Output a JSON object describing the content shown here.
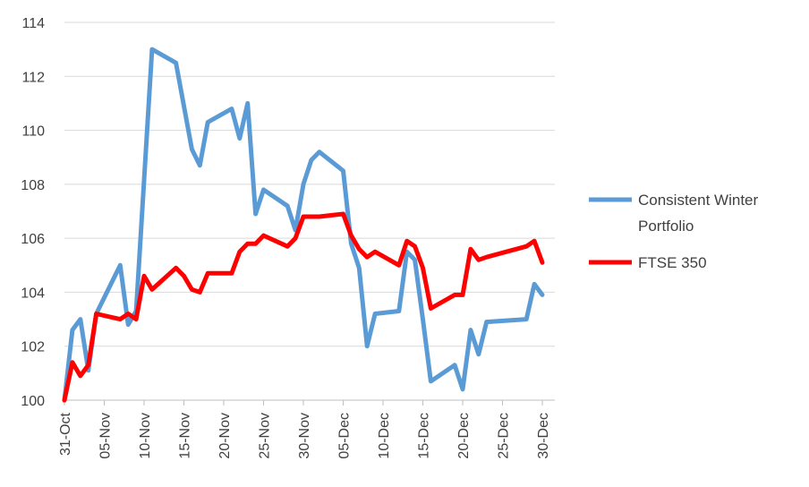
{
  "chart_data": {
    "type": "line",
    "title": "",
    "xlabel": "",
    "ylabel": "",
    "ylim": [
      100,
      114
    ],
    "yticks": [
      100,
      102,
      104,
      106,
      108,
      110,
      112,
      114
    ],
    "xlim": [
      "2019-10-31",
      "2019-12-31"
    ],
    "xtick_labels": [
      "31-Oct",
      "05-Nov",
      "10-Nov",
      "15-Nov",
      "20-Nov",
      "25-Nov",
      "30-Nov",
      "05-Dec",
      "10-Dec",
      "15-Dec",
      "20-Dec",
      "25-Dec",
      "30-Dec"
    ],
    "xtick_dates": [
      "2019-10-31",
      "2019-11-05",
      "2019-11-10",
      "2019-11-15",
      "2019-11-20",
      "2019-11-25",
      "2019-11-30",
      "2019-12-05",
      "2019-12-10",
      "2019-12-15",
      "2019-12-20",
      "2019-12-25",
      "2019-12-30"
    ],
    "grid": true,
    "legend_position": "right",
    "series": [
      {
        "name": "Consistent Winter Portfolio",
        "color": "#5b9bd5",
        "points": [
          [
            "2019-10-31",
            100.0
          ],
          [
            "2019-11-01",
            102.6
          ],
          [
            "2019-11-02",
            103.0
          ],
          [
            "2019-11-03",
            101.1
          ],
          [
            "2019-11-04",
            103.2
          ],
          [
            "2019-11-07",
            105.0
          ],
          [
            "2019-11-08",
            102.8
          ],
          [
            "2019-11-09",
            103.3
          ],
          [
            "2019-11-11",
            113.0
          ],
          [
            "2019-11-14",
            112.5
          ],
          [
            "2019-11-15",
            110.9
          ],
          [
            "2019-11-16",
            109.3
          ],
          [
            "2019-11-17",
            108.7
          ],
          [
            "2019-11-18",
            110.3
          ],
          [
            "2019-11-21",
            110.8
          ],
          [
            "2019-11-22",
            109.7
          ],
          [
            "2019-11-23",
            111.0
          ],
          [
            "2019-11-24",
            106.9
          ],
          [
            "2019-11-25",
            107.8
          ],
          [
            "2019-11-28",
            107.2
          ],
          [
            "2019-11-29",
            106.3
          ],
          [
            "2019-11-30",
            108.0
          ],
          [
            "2019-12-01",
            108.9
          ],
          [
            "2019-12-02",
            109.2
          ],
          [
            "2019-12-05",
            108.5
          ],
          [
            "2019-12-06",
            105.8
          ],
          [
            "2019-12-07",
            104.9
          ],
          [
            "2019-12-08",
            102.0
          ],
          [
            "2019-12-09",
            103.2
          ],
          [
            "2019-12-12",
            103.3
          ],
          [
            "2019-12-13",
            105.5
          ],
          [
            "2019-12-14",
            105.2
          ],
          [
            "2019-12-15",
            103.0
          ],
          [
            "2019-12-16",
            100.7
          ],
          [
            "2019-12-19",
            101.3
          ],
          [
            "2019-12-20",
            100.4
          ],
          [
            "2019-12-21",
            102.6
          ],
          [
            "2019-12-22",
            101.7
          ],
          [
            "2019-12-23",
            102.9
          ],
          [
            "2019-12-28",
            103.0
          ],
          [
            "2019-12-29",
            104.3
          ],
          [
            "2019-12-30",
            103.9
          ]
        ]
      },
      {
        "name": "FTSE 350",
        "color": "#ff0000",
        "points": [
          [
            "2019-10-31",
            100.0
          ],
          [
            "2019-11-01",
            101.4
          ],
          [
            "2019-11-02",
            100.9
          ],
          [
            "2019-11-03",
            101.3
          ],
          [
            "2019-11-04",
            103.2
          ],
          [
            "2019-11-07",
            103.0
          ],
          [
            "2019-11-08",
            103.2
          ],
          [
            "2019-11-09",
            103.0
          ],
          [
            "2019-11-10",
            104.6
          ],
          [
            "2019-11-11",
            104.1
          ],
          [
            "2019-11-14",
            104.9
          ],
          [
            "2019-11-15",
            104.6
          ],
          [
            "2019-11-16",
            104.1
          ],
          [
            "2019-11-17",
            104.0
          ],
          [
            "2019-11-18",
            104.7
          ],
          [
            "2019-11-21",
            104.7
          ],
          [
            "2019-11-22",
            105.5
          ],
          [
            "2019-11-23",
            105.8
          ],
          [
            "2019-11-24",
            105.8
          ],
          [
            "2019-11-25",
            106.1
          ],
          [
            "2019-11-28",
            105.7
          ],
          [
            "2019-11-29",
            106.0
          ],
          [
            "2019-11-30",
            106.8
          ],
          [
            "2019-12-02",
            106.8
          ],
          [
            "2019-12-05",
            106.9
          ],
          [
            "2019-12-06",
            106.1
          ],
          [
            "2019-12-07",
            105.6
          ],
          [
            "2019-12-08",
            105.3
          ],
          [
            "2019-12-09",
            105.5
          ],
          [
            "2019-12-12",
            105.0
          ],
          [
            "2019-12-13",
            105.9
          ],
          [
            "2019-12-14",
            105.7
          ],
          [
            "2019-12-15",
            104.9
          ],
          [
            "2019-12-16",
            103.4
          ],
          [
            "2019-12-19",
            103.9
          ],
          [
            "2019-12-20",
            103.9
          ],
          [
            "2019-12-21",
            105.6
          ],
          [
            "2019-12-22",
            105.2
          ],
          [
            "2019-12-23",
            105.3
          ],
          [
            "2019-12-28",
            105.7
          ],
          [
            "2019-12-29",
            105.9
          ],
          [
            "2019-12-30",
            105.1
          ]
        ]
      }
    ]
  },
  "legend": {
    "items": [
      {
        "label_line1": "Consistent Winter",
        "label_line2": "Portfolio"
      },
      {
        "label_line1": "FTSE 350",
        "label_line2": ""
      }
    ]
  }
}
